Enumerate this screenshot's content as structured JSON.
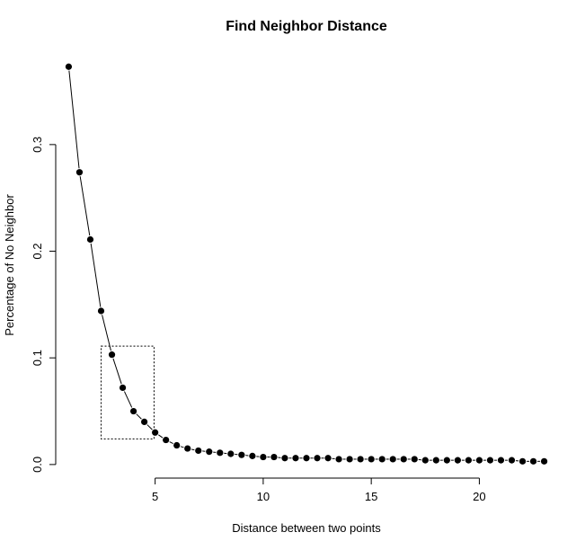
{
  "chart_data": {
    "type": "line",
    "title": "Find Neighbor Distance",
    "xlabel": "Distance between two points",
    "ylabel": "Percentage of No Neighbor",
    "xlim": [
      0.4,
      23.6
    ],
    "ylim": [
      -0.006,
      0.385
    ],
    "x_ticks": [
      5,
      10,
      15,
      20
    ],
    "y_ticks": [
      0.0,
      0.1,
      0.2,
      0.3
    ],
    "x_tick_labels": [
      "5",
      "10",
      "15",
      "20"
    ],
    "y_tick_labels": [
      "0.0",
      "0.1",
      "0.2",
      "0.3"
    ],
    "grid": false,
    "highlight_box": {
      "x_range": [
        2.5,
        4.95
      ],
      "y_range": [
        0.024,
        0.111
      ]
    },
    "series": [
      {
        "x": [
          1.0,
          1.5,
          2.0,
          2.5,
          3.0,
          3.5,
          4.0,
          4.5,
          5.0,
          5.5,
          6.0,
          6.5,
          7.0,
          7.5,
          8.0,
          8.5,
          9.0,
          9.5,
          10.0,
          10.5,
          11.0,
          11.5,
          12.0,
          12.5,
          13.0,
          13.5,
          14.0,
          14.5,
          15.0,
          15.5,
          16.0,
          16.5,
          17.0,
          17.5,
          18.0,
          18.5,
          19.0,
          19.5,
          20.0,
          20.5,
          21.0,
          21.5,
          22.0,
          22.5,
          23.0
        ],
        "values": [
          0.373,
          0.274,
          0.211,
          0.144,
          0.103,
          0.072,
          0.05,
          0.04,
          0.03,
          0.023,
          0.018,
          0.015,
          0.013,
          0.012,
          0.011,
          0.01,
          0.009,
          0.008,
          0.007,
          0.007,
          0.006,
          0.006,
          0.006,
          0.006,
          0.006,
          0.005,
          0.005,
          0.005,
          0.005,
          0.005,
          0.005,
          0.005,
          0.005,
          0.004,
          0.004,
          0.004,
          0.004,
          0.004,
          0.004,
          0.004,
          0.004,
          0.004,
          0.003,
          0.003,
          0.003
        ]
      }
    ]
  }
}
